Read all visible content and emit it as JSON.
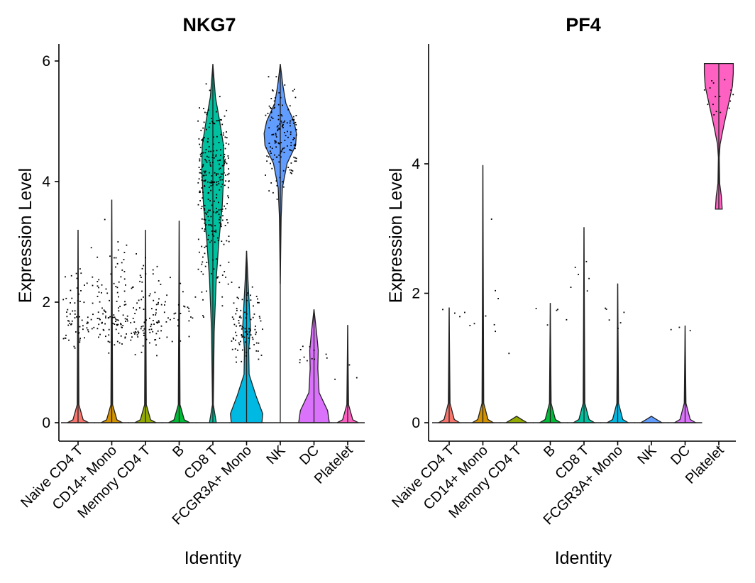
{
  "chart_data": [
    {
      "type": "violin",
      "title": "NKG7",
      "xlabel": "Identity",
      "ylabel": "Expression Level",
      "ylim": [
        0,
        6.1
      ],
      "yticks": [
        0,
        2,
        4,
        6
      ],
      "categories": [
        "Naive CD4 T",
        "CD14+ Mono",
        "Memory CD4 T",
        "B",
        "CD8 T",
        "FCGR3A+ Mono",
        "NK",
        "DC",
        "Platelet"
      ],
      "colors": [
        "#F8766D",
        "#D39200",
        "#93AA00",
        "#00BA38",
        "#00C19F",
        "#00B9E3",
        "#619CFF",
        "#DB72FB",
        "#FF61C3"
      ],
      "series": [
        {
          "name": "Naive CD4 T",
          "max": 3.2,
          "profile": [
            [
              0,
              0.25
            ],
            [
              0.05,
              0.12
            ],
            [
              0.3,
              0.02
            ],
            [
              3.2,
              0.0
            ]
          ],
          "points": {
            "n": 70,
            "lo": 1.1,
            "hi": 3.1,
            "center": 1.7
          }
        },
        {
          "name": "CD14+ Mono",
          "max": 3.7,
          "profile": [
            [
              0,
              0.25
            ],
            [
              0.05,
              0.12
            ],
            [
              0.3,
              0.02
            ],
            [
              3.7,
              0.0
            ]
          ],
          "points": {
            "n": 110,
            "lo": 1.1,
            "hi": 3.7,
            "center": 1.8
          }
        },
        {
          "name": "Memory CD4 T",
          "max": 3.2,
          "profile": [
            [
              0,
              0.25
            ],
            [
              0.05,
              0.12
            ],
            [
              0.3,
              0.02
            ],
            [
              3.2,
              0.0
            ]
          ],
          "points": {
            "n": 95,
            "lo": 1.0,
            "hi": 3.3,
            "center": 1.7
          }
        },
        {
          "name": "B",
          "max": 3.35,
          "profile": [
            [
              0,
              0.25
            ],
            [
              0.05,
              0.12
            ],
            [
              0.3,
              0.02
            ],
            [
              3.35,
              0.0
            ]
          ],
          "points": {
            "n": 30,
            "lo": 1.1,
            "hi": 3.0,
            "center": 1.8
          }
        },
        {
          "name": "CD8 T",
          "max": 5.95,
          "profile": [
            [
              0,
              0.08
            ],
            [
              0.3,
              0.01
            ],
            [
              1.5,
              0.03
            ],
            [
              2.4,
              0.08
            ],
            [
              3.0,
              0.14
            ],
            [
              3.6,
              0.22
            ],
            [
              4.2,
              0.26
            ],
            [
              4.6,
              0.25
            ],
            [
              5.0,
              0.16
            ],
            [
              5.4,
              0.06
            ],
            [
              5.95,
              0.0
            ]
          ],
          "points": {
            "n": 300,
            "lo": 1.3,
            "hi": 5.9,
            "center": 4.0
          }
        },
        {
          "name": "FCGR3A+ Mono",
          "max": 2.85,
          "profile": [
            [
              0,
              0.36
            ],
            [
              0.15,
              0.38
            ],
            [
              0.45,
              0.22
            ],
            [
              0.8,
              0.06
            ],
            [
              1.2,
              0.05
            ],
            [
              1.6,
              0.09
            ],
            [
              2.0,
              0.06
            ],
            [
              2.4,
              0.03
            ],
            [
              2.85,
              0.0
            ]
          ],
          "points": {
            "n": 95,
            "lo": 0.9,
            "hi": 2.6,
            "center": 1.6
          }
        },
        {
          "name": "NK",
          "max": 5.95,
          "profile": [
            [
              2.3,
              0.0
            ],
            [
              3.4,
              0.02
            ],
            [
              3.9,
              0.05
            ],
            [
              4.3,
              0.16
            ],
            [
              4.6,
              0.36
            ],
            [
              4.8,
              0.38
            ],
            [
              5.0,
              0.32
            ],
            [
              5.3,
              0.13
            ],
            [
              5.6,
              0.06
            ],
            [
              5.95,
              0.0
            ]
          ],
          "points": {
            "n": 150,
            "lo": 3.5,
            "hi": 5.9,
            "center": 4.8
          }
        },
        {
          "name": "DC",
          "max": 1.88,
          "profile": [
            [
              0,
              0.36
            ],
            [
              0.2,
              0.32
            ],
            [
              0.5,
              0.12
            ],
            [
              0.9,
              0.09
            ],
            [
              1.2,
              0.1
            ],
            [
              1.5,
              0.06
            ],
            [
              1.88,
              0.0
            ]
          ],
          "points": {
            "n": 12,
            "lo": 0.9,
            "hi": 1.9,
            "center": 1.1
          }
        },
        {
          "name": "Platelet",
          "max": 1.62,
          "profile": [
            [
              0,
              0.25
            ],
            [
              0.05,
              0.12
            ],
            [
              0.3,
              0.02
            ],
            [
              1.62,
              0.0
            ]
          ],
          "points": {
            "n": 3,
            "lo": 0.7,
            "hi": 1.6,
            "center": 0.8
          }
        }
      ]
    },
    {
      "type": "violin",
      "title": "PF4",
      "xlabel": "Identity",
      "ylabel": "Expression Level",
      "ylim": [
        -0.22,
        5.75
      ],
      "yticks": [
        0,
        2,
        4
      ],
      "categories": [
        "Naive CD4 T",
        "CD14+ Mono",
        "Memory CD4 T",
        "B",
        "CD8 T",
        "FCGR3A+ Mono",
        "NK",
        "DC",
        "Platelet"
      ],
      "colors": [
        "#F8766D",
        "#D39200",
        "#93AA00",
        "#00BA38",
        "#00C19F",
        "#00B9E3",
        "#619CFF",
        "#DB72FB",
        "#FF61C3"
      ],
      "series": [
        {
          "name": "Naive CD4 T",
          "max": 1.78,
          "profile": [
            [
              0,
              0.25
            ],
            [
              0.05,
              0.12
            ],
            [
              0.3,
              0.02
            ],
            [
              1.78,
              0.0
            ]
          ],
          "points": {
            "n": 4,
            "lo": 1.6,
            "hi": 1.8,
            "center": 1.7
          }
        },
        {
          "name": "CD14+ Mono",
          "max": 3.98,
          "profile": [
            [
              0,
              0.25
            ],
            [
              0.05,
              0.12
            ],
            [
              0.3,
              0.02
            ],
            [
              3.98,
              0.0
            ]
          ],
          "points": {
            "n": 8,
            "lo": 1.1,
            "hi": 4.0,
            "center": 1.6
          }
        },
        {
          "name": "Memory CD4 T",
          "max": 0.0,
          "profile": [
            [
              0,
              0.25
            ],
            [
              0.05,
              0.12
            ],
            [
              0.1,
              0.0
            ]
          ],
          "points": {
            "n": 1,
            "lo": 1.07,
            "hi": 1.1,
            "center": 1.08
          }
        },
        {
          "name": "B",
          "max": 1.85,
          "profile": [
            [
              0,
              0.25
            ],
            [
              0.05,
              0.12
            ],
            [
              0.3,
              0.02
            ],
            [
              1.85,
              0.0
            ]
          ],
          "points": {
            "n": 5,
            "lo": 1.4,
            "hi": 1.85,
            "center": 1.75
          }
        },
        {
          "name": "CD8 T",
          "max": 3.02,
          "profile": [
            [
              0,
              0.25
            ],
            [
              0.05,
              0.12
            ],
            [
              0.3,
              0.02
            ],
            [
              3.02,
              0.0
            ]
          ],
          "points": {
            "n": 6,
            "lo": 1.8,
            "hi": 3.02,
            "center": 2.3
          }
        },
        {
          "name": "FCGR3A+ Mono",
          "max": 2.15,
          "profile": [
            [
              0,
              0.25
            ],
            [
              0.05,
              0.12
            ],
            [
              0.3,
              0.02
            ],
            [
              2.15,
              0.0
            ]
          ],
          "points": {
            "n": 6,
            "lo": 1.2,
            "hi": 2.15,
            "center": 1.6
          }
        },
        {
          "name": "NK",
          "max": 0.0,
          "profile": [
            [
              0,
              0.25
            ],
            [
              0.05,
              0.12
            ],
            [
              0.1,
              0.0
            ]
          ],
          "points": {
            "n": 0,
            "lo": 0,
            "hi": 0,
            "center": 0
          }
        },
        {
          "name": "DC",
          "max": 1.5,
          "profile": [
            [
              0,
              0.25
            ],
            [
              0.05,
              0.12
            ],
            [
              0.3,
              0.02
            ],
            [
              1.5,
              0.0
            ]
          ],
          "points": {
            "n": 3,
            "lo": 1.4,
            "hi": 1.5,
            "center": 1.45
          }
        },
        {
          "name": "Platelet",
          "min": 3.3,
          "max": 5.55,
          "profile": [
            [
              3.3,
              0.08
            ],
            [
              3.5,
              0.06
            ],
            [
              3.7,
              0.02
            ],
            [
              4.1,
              0.01
            ],
            [
              4.3,
              0.03
            ],
            [
              4.6,
              0.12
            ],
            [
              4.9,
              0.22
            ],
            [
              5.2,
              0.32
            ],
            [
              5.4,
              0.34
            ],
            [
              5.55,
              0.34
            ]
          ],
          "points": {
            "n": 16,
            "lo": 4.5,
            "hi": 5.55,
            "center": 5.1
          }
        }
      ]
    }
  ]
}
